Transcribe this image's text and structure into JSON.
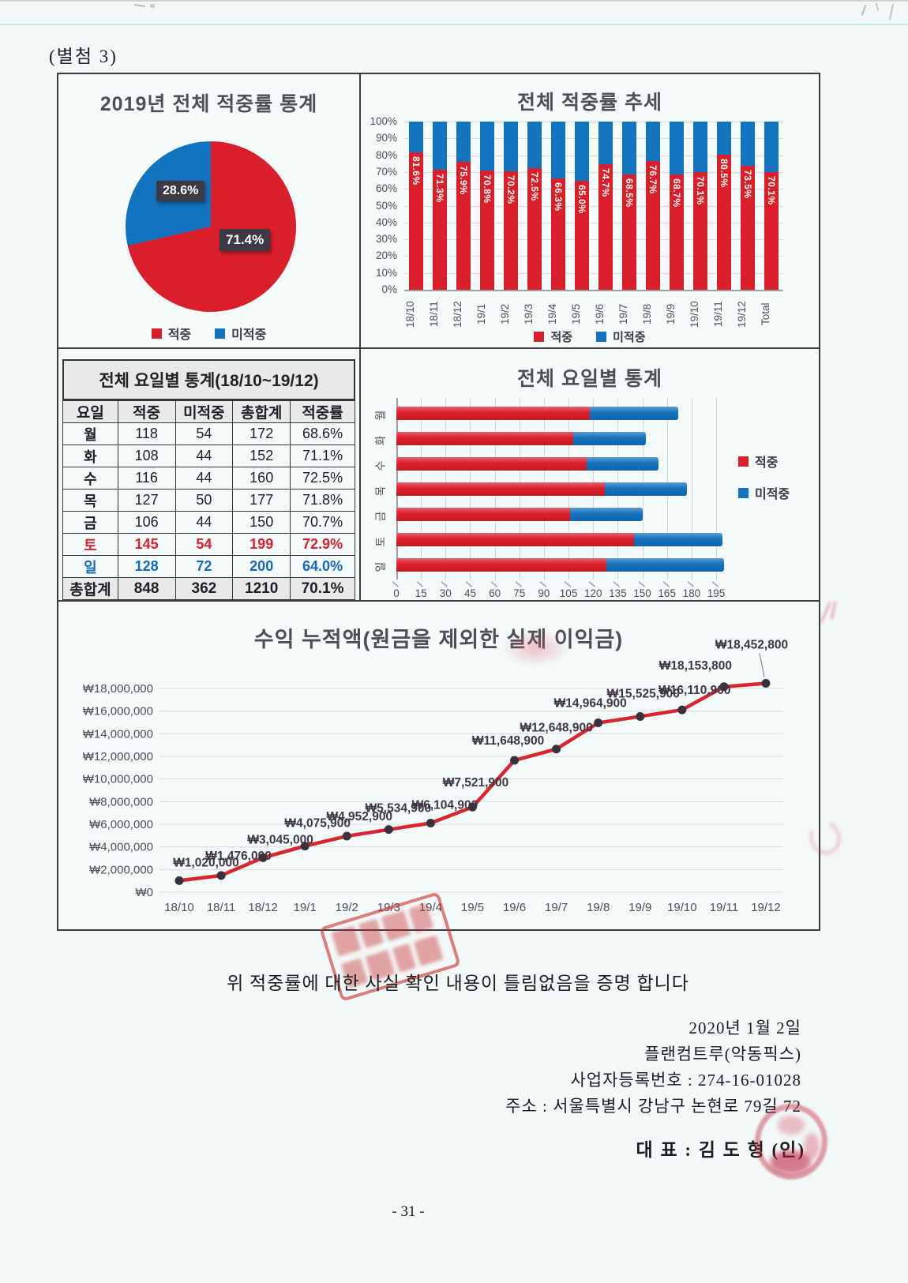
{
  "page": {
    "attachment_label": "(별첨 3)",
    "certification": "위 적중률에 대한 사실 확인 내용이 틀림없음을 증명 합니다",
    "date": "2020년 1월 2일",
    "company": "플랜컴트루(악동픽스)",
    "business_reg": "사업자등록번호 : 274-16-01028",
    "address": "주소 : 서울특별시 강남구 논현로 79길 72",
    "representative": "대 표 : 김 도 형  (인)",
    "page_number": "- 31 -"
  },
  "colors": {
    "hit": "#da1f2b",
    "miss": "#1273bf",
    "label_box": "#3d3a46",
    "line": "#d9252e",
    "marker": "#39323e",
    "sun_text": "#1569be",
    "sat_text": "#da1f2b"
  },
  "legend": {
    "hit": "적중",
    "miss": "미적중"
  },
  "chart_data": [
    {
      "id": "overall-pie",
      "type": "pie",
      "title": "2019년 전체 적중률 통계",
      "labels": [
        "적중",
        "미적중"
      ],
      "values": [
        71.4,
        28.6
      ],
      "value_labels": [
        "71.4%",
        "28.6%"
      ],
      "colors": [
        "#da1f2b",
        "#1273bf"
      ],
      "legend": [
        "적중",
        "미적중"
      ]
    },
    {
      "id": "trend",
      "type": "bar",
      "stacked": true,
      "title": "전체 적중률 추세",
      "categories": [
        "18/10",
        "18/11",
        "18/12",
        "19/1",
        "19/2",
        "19/3",
        "19/4",
        "19/5",
        "19/6",
        "19/7",
        "19/8",
        "19/9",
        "19/10",
        "19/11",
        "19/12",
        "Total"
      ],
      "series": [
        {
          "name": "적중",
          "color": "#da1f2b",
          "values": [
            81.6,
            71.3,
            75.9,
            70.8,
            70.2,
            72.5,
            66.3,
            65.0,
            74.7,
            68.5,
            76.7,
            68.7,
            70.1,
            80.5,
            73.5,
            70.1
          ]
        },
        {
          "name": "미적중",
          "color": "#1273bf",
          "values": [
            18.4,
            28.7,
            24.1,
            29.2,
            29.8,
            27.5,
            33.7,
            35.0,
            25.3,
            31.5,
            23.3,
            31.3,
            29.9,
            19.5,
            26.5,
            29.9
          ]
        }
      ],
      "value_labels": [
        "81.6%",
        "71.3%",
        "75.9%",
        "70.8%",
        "70.2%",
        "72.5%",
        "66.3%",
        "65.0%",
        "74.7%",
        "68.5%",
        "76.7%",
        "68.7%",
        "70.1%",
        "80.5%",
        "73.5%",
        "70.1%"
      ],
      "yticks": [
        "100%",
        "90%",
        "80%",
        "70%",
        "60%",
        "50%",
        "40%",
        "30%",
        "20%",
        "10%",
        "0%"
      ],
      "ylim": [
        0,
        100
      ],
      "legend": [
        "적중",
        "미적중"
      ]
    },
    {
      "id": "weekday-table",
      "type": "table",
      "title": "전체 요일별 통계(18/10~19/12)",
      "headers": [
        "요일",
        "적중",
        "미적중",
        "총합계",
        "적중률"
      ],
      "rows": [
        [
          "월",
          "118",
          "54",
          "172",
          "68.6%"
        ],
        [
          "화",
          "108",
          "44",
          "152",
          "71.1%"
        ],
        [
          "수",
          "116",
          "44",
          "160",
          "72.5%"
        ],
        [
          "목",
          "127",
          "50",
          "177",
          "71.8%"
        ],
        [
          "금",
          "106",
          "44",
          "150",
          "70.7%"
        ],
        [
          "토",
          "145",
          "54",
          "199",
          "72.9%"
        ],
        [
          "일",
          "128",
          "72",
          "200",
          "64.0%"
        ],
        [
          "총합계",
          "848",
          "362",
          "1210",
          "70.1%"
        ]
      ],
      "row_styles": [
        "",
        "",
        "",
        "",
        "",
        "sat",
        "sun",
        "total"
      ]
    },
    {
      "id": "weekday-bars",
      "type": "bar-horizontal",
      "stacked": true,
      "title": "전체 요일별 통계",
      "categories": [
        "월",
        "화",
        "수",
        "목",
        "금",
        "토",
        "일"
      ],
      "series": [
        {
          "name": "적중",
          "color": "#da1f2b",
          "values": [
            118,
            108,
            116,
            127,
            106,
            145,
            128
          ]
        },
        {
          "name": "미적중",
          "color": "#1273bf",
          "values": [
            54,
            44,
            44,
            50,
            44,
            54,
            72
          ]
        }
      ],
      "xticks": [
        0,
        15,
        30,
        45,
        60,
        75,
        90,
        105,
        120,
        135,
        150,
        165,
        180,
        195
      ],
      "xlim": [
        0,
        195
      ],
      "legend": [
        "적중",
        "미적중"
      ]
    },
    {
      "id": "profit-line",
      "type": "line",
      "title": "수익 누적액(원금을 제외한 실제 이익금)",
      "categories": [
        "18/10",
        "18/11",
        "18/12",
        "19/1",
        "19/2",
        "19/3",
        "19/4",
        "19/5",
        "19/6",
        "19/7",
        "19/8",
        "19/9",
        "19/10",
        "19/11",
        "19/12"
      ],
      "values": [
        1020000,
        1476000,
        3045000,
        4075900,
        4952900,
        5534900,
        6104900,
        7521900,
        11648900,
        12648900,
        14964900,
        15525900,
        16110900,
        18153800,
        18452800
      ],
      "point_labels": [
        "₩1,020,000",
        "₩1,476,000",
        "₩3,045,000",
        "₩4,075,900",
        "₩4,952,900",
        "₩5,534,900",
        "₩6,104,900",
        "₩7,521,900",
        "₩11,648,900",
        "₩12,648,900",
        "₩14,964,900",
        "₩15,525,900",
        "₩16,110,900",
        "₩18,153,800",
        "₩18,452,800"
      ],
      "yticks": [
        "₩18,000,000",
        "₩16,000,000",
        "₩14,000,000",
        "₩12,000,000",
        "₩10,000,000",
        "₩8,000,000",
        "₩6,000,000",
        "₩4,000,000",
        "₩2,000,000",
        "₩0"
      ],
      "ylim": [
        0,
        18000000
      ]
    }
  ]
}
